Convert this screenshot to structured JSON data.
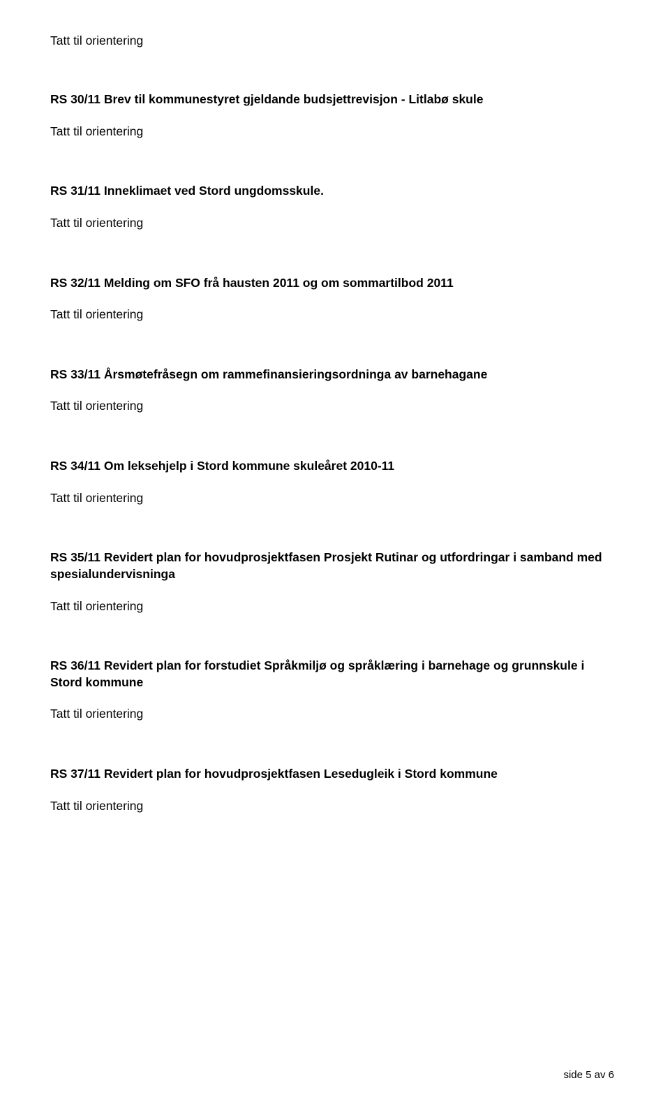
{
  "status_text": "Tatt til orientering",
  "items": [
    {
      "heading": "RS 30/11 Brev til kommunestyret gjeldande budsjettrevisjon - Litlabø skule"
    },
    {
      "heading": "RS 31/11 Inneklimaet ved Stord ungdomsskule."
    },
    {
      "heading": "RS 32/11 Melding om SFO frå hausten 2011 og om sommartilbod 2011"
    },
    {
      "heading": "RS 33/11 Årsmøtefråsegn om rammefinansieringsordninga av barnehagane"
    },
    {
      "heading": "RS 34/11 Om leksehjelp i Stord kommune skuleåret 2010-11"
    },
    {
      "heading": "RS 35/11 Revidert plan for hovudprosjektfasen Prosjekt Rutinar og utfordringar i samband med spesialundervisninga"
    },
    {
      "heading": "RS 36/11 Revidert plan for forstudiet Språkmiljø og språklæring i barnehage og grunnskule i Stord kommune"
    },
    {
      "heading": "RS 37/11 Revidert plan for hovudprosjektfasen Lesedugleik i Stord kommune"
    }
  ],
  "footer": "side 5 av 6"
}
